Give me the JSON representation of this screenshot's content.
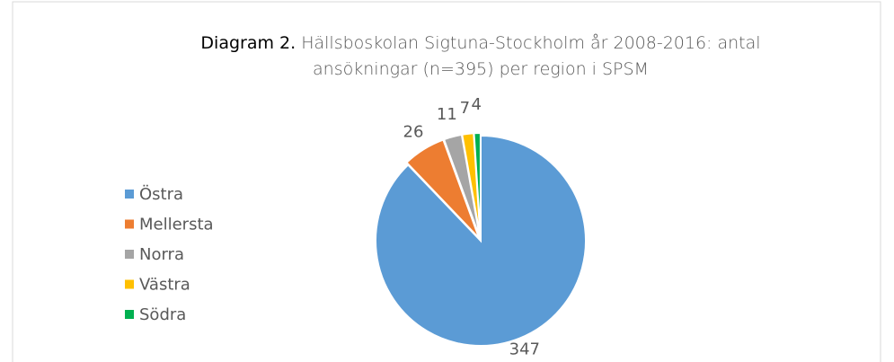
{
  "chart_data": {
    "type": "pie",
    "title": [
      "Diagram 2.",
      "Hällsboskolan Sigtuna-Stockholm år 2008-2016: antal ansökningar (n=395) per region i SPSM"
    ],
    "categories": [
      "Östra",
      "Mellersta",
      "Norra",
      "Västra",
      "Södra"
    ],
    "values": [
      347,
      26,
      11,
      7,
      4
    ],
    "colors": [
      "#5b9bd5",
      "#ed7d31",
      "#a5a5a5",
      "#ffc000",
      "#00b050"
    ],
    "legend": "left"
  }
}
